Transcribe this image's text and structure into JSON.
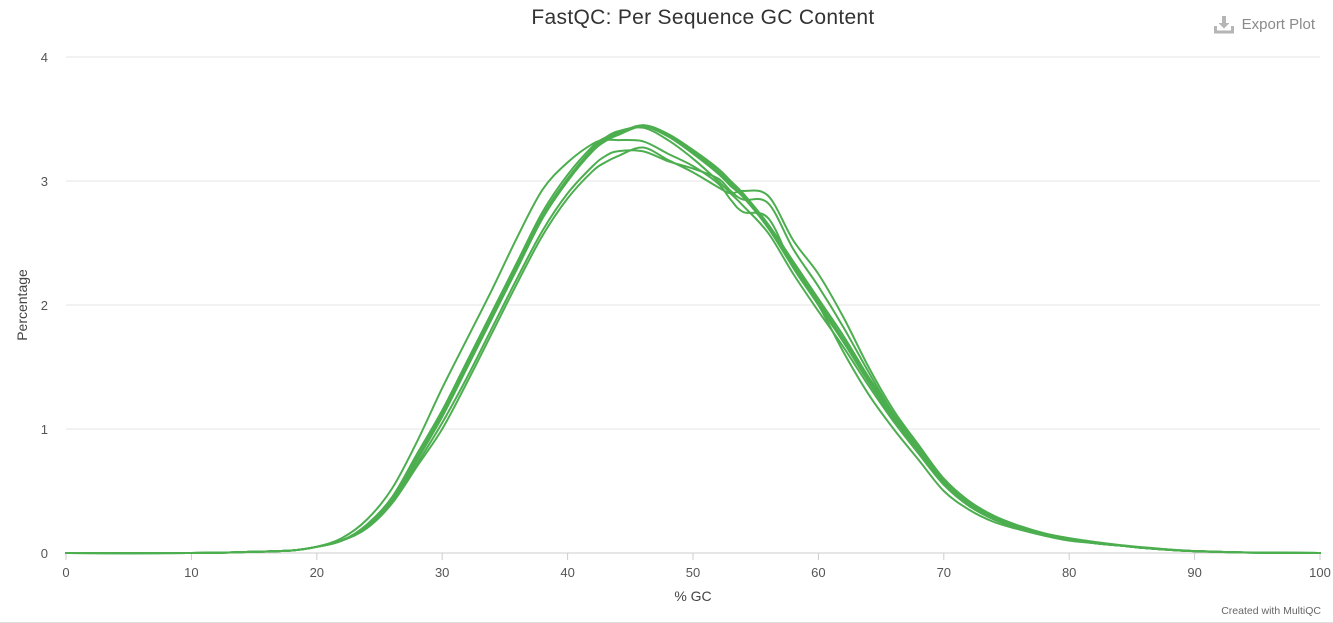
{
  "export": {
    "label": "Export Plot",
    "icon": "download-icon"
  },
  "credit": "Created with MultiQC",
  "colors": {
    "series": "#4cae4f",
    "grid": "#e6e6e6",
    "axis": "#cccccc"
  },
  "chart_data": {
    "type": "line",
    "title": "FastQC: Per Sequence GC Content",
    "xlabel": "% GC",
    "ylabel": "Percentage",
    "xlim": [
      0,
      100
    ],
    "ylim": [
      0,
      4
    ],
    "xticks": [
      0,
      10,
      20,
      30,
      40,
      50,
      60,
      70,
      80,
      90,
      100
    ],
    "yticks": [
      0,
      1,
      2,
      3,
      4
    ],
    "grid": true,
    "legend": "none",
    "x": [
      0,
      10,
      15,
      18,
      20,
      22,
      24,
      26,
      28,
      30,
      32,
      34,
      36,
      38,
      40,
      42,
      43,
      44,
      46,
      48,
      50,
      52,
      53,
      54,
      56,
      58,
      60,
      62,
      64,
      66,
      68,
      70,
      72,
      74,
      76,
      78,
      80,
      82,
      84,
      86,
      88,
      90,
      93,
      96,
      100
    ],
    "series": [
      {
        "values": [
          0,
          0,
          0.01,
          0.02,
          0.05,
          0.1,
          0.22,
          0.42,
          0.75,
          1.1,
          1.5,
          1.9,
          2.3,
          2.7,
          3.0,
          3.25,
          3.33,
          3.38,
          3.45,
          3.38,
          3.25,
          3.1,
          3.0,
          2.9,
          2.65,
          2.35,
          2.05,
          1.75,
          1.42,
          1.12,
          0.85,
          0.58,
          0.4,
          0.28,
          0.2,
          0.15,
          0.11,
          0.08,
          0.06,
          0.04,
          0.025,
          0.015,
          0.006,
          0.002,
          0
        ]
      },
      {
        "values": [
          0,
          0,
          0.01,
          0.02,
          0.05,
          0.1,
          0.22,
          0.43,
          0.77,
          1.12,
          1.52,
          1.92,
          2.32,
          2.72,
          3.02,
          3.26,
          3.34,
          3.39,
          3.44,
          3.36,
          3.22,
          3.06,
          2.96,
          2.87,
          2.62,
          2.3,
          2.0,
          1.7,
          1.38,
          1.08,
          0.82,
          0.56,
          0.39,
          0.27,
          0.2,
          0.15,
          0.11,
          0.08,
          0.06,
          0.04,
          0.025,
          0.015,
          0.006,
          0.002,
          0
        ]
      },
      {
        "values": [
          0,
          0,
          0.01,
          0.02,
          0.05,
          0.1,
          0.23,
          0.45,
          0.8,
          1.15,
          1.55,
          1.95,
          2.35,
          2.75,
          3.05,
          3.28,
          3.35,
          3.4,
          3.43,
          3.33,
          3.18,
          3.0,
          2.9,
          2.8,
          2.58,
          2.25,
          1.95,
          1.66,
          1.35,
          1.06,
          0.8,
          0.55,
          0.38,
          0.27,
          0.2,
          0.15,
          0.11,
          0.08,
          0.06,
          0.04,
          0.025,
          0.015,
          0.006,
          0.002,
          0
        ]
      },
      {
        "values": [
          0,
          0,
          0.01,
          0.02,
          0.05,
          0.12,
          0.27,
          0.52,
          0.9,
          1.33,
          1.73,
          2.13,
          2.55,
          2.93,
          3.15,
          3.3,
          3.33,
          3.33,
          3.32,
          3.22,
          3.12,
          2.98,
          2.85,
          2.75,
          2.7,
          2.3,
          2.0,
          1.62,
          1.28,
          1.0,
          0.75,
          0.5,
          0.35,
          0.25,
          0.19,
          0.14,
          0.1,
          0.08,
          0.06,
          0.04,
          0.025,
          0.015,
          0.006,
          0.002,
          0
        ]
      },
      {
        "values": [
          0,
          0,
          0.01,
          0.02,
          0.05,
          0.1,
          0.2,
          0.4,
          0.7,
          1.0,
          1.38,
          1.78,
          2.18,
          2.56,
          2.86,
          3.08,
          3.15,
          3.2,
          3.27,
          3.17,
          3.07,
          2.95,
          2.9,
          2.92,
          2.88,
          2.52,
          2.25,
          1.9,
          1.5,
          1.15,
          0.87,
          0.6,
          0.42,
          0.3,
          0.22,
          0.16,
          0.12,
          0.09,
          0.065,
          0.045,
          0.028,
          0.016,
          0.007,
          0.002,
          0
        ]
      },
      {
        "values": [
          0,
          0,
          0.01,
          0.02,
          0.05,
          0.1,
          0.21,
          0.41,
          0.72,
          1.05,
          1.42,
          1.82,
          2.22,
          2.6,
          2.9,
          3.12,
          3.2,
          3.24,
          3.24,
          3.16,
          3.1,
          3.02,
          2.92,
          2.85,
          2.82,
          2.45,
          2.15,
          1.82,
          1.46,
          1.12,
          0.85,
          0.58,
          0.41,
          0.29,
          0.21,
          0.155,
          0.115,
          0.085,
          0.062,
          0.043,
          0.027,
          0.015,
          0.006,
          0.002,
          0
        ]
      },
      {
        "values": [
          0,
          0,
          0.01,
          0.02,
          0.05,
          0.1,
          0.22,
          0.42,
          0.76,
          1.1,
          1.5,
          1.9,
          2.3,
          2.7,
          3.0,
          3.24,
          3.32,
          3.37,
          3.44,
          3.37,
          3.24,
          3.08,
          2.98,
          2.88,
          2.63,
          2.32,
          2.02,
          1.72,
          1.4,
          1.1,
          0.83,
          0.57,
          0.4,
          0.28,
          0.2,
          0.15,
          0.11,
          0.08,
          0.06,
          0.04,
          0.025,
          0.015,
          0.006,
          0.002,
          0
        ]
      },
      {
        "values": [
          0,
          0,
          0.01,
          0.02,
          0.05,
          0.1,
          0.22,
          0.43,
          0.77,
          1.12,
          1.51,
          1.91,
          2.31,
          2.71,
          3.01,
          3.25,
          3.33,
          3.38,
          3.45,
          3.37,
          3.23,
          3.07,
          2.97,
          2.88,
          2.64,
          2.33,
          2.03,
          1.72,
          1.4,
          1.1,
          0.84,
          0.57,
          0.4,
          0.28,
          0.2,
          0.15,
          0.11,
          0.08,
          0.06,
          0.04,
          0.025,
          0.015,
          0.006,
          0.002,
          0
        ]
      }
    ]
  }
}
